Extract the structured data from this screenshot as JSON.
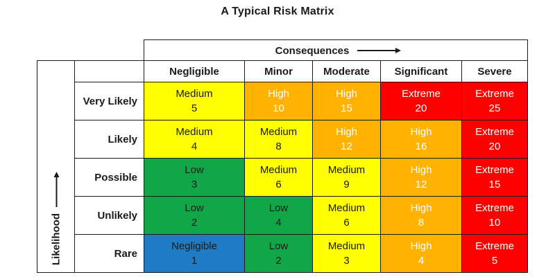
{
  "chart_data": {
    "type": "heatmap",
    "title": "A Typical Risk Matrix",
    "x_axis_label": "Consequences",
    "x_axis_arrow": "right",
    "y_axis_label": "Likelihood",
    "y_axis_arrow": "up",
    "columns": [
      "Negligible",
      "Minor",
      "Moderate",
      "Significant",
      "Severe"
    ],
    "rows": [
      "Very Likely",
      "Likely",
      "Possible",
      "Unlikely",
      "Rare"
    ],
    "cells": [
      [
        {
          "label": "Medium",
          "value": 5
        },
        {
          "label": "High",
          "value": 10
        },
        {
          "label": "High",
          "value": 15
        },
        {
          "label": "Extreme",
          "value": 20
        },
        {
          "label": "Extreme",
          "value": 25
        }
      ],
      [
        {
          "label": "Medium",
          "value": 4
        },
        {
          "label": "Medium",
          "value": 8
        },
        {
          "label": "High",
          "value": 12
        },
        {
          "label": "High",
          "value": 16
        },
        {
          "label": "Extreme",
          "value": 20
        }
      ],
      [
        {
          "label": "Low",
          "value": 3
        },
        {
          "label": "Medium",
          "value": 6
        },
        {
          "label": "Medium",
          "value": 9
        },
        {
          "label": "High",
          "value": 12
        },
        {
          "label": "Extreme",
          "value": 15
        }
      ],
      [
        {
          "label": "Low",
          "value": 2
        },
        {
          "label": "Low",
          "value": 4
        },
        {
          "label": "Medium",
          "value": 6
        },
        {
          "label": "High",
          "value": 8
        },
        {
          "label": "Extreme",
          "value": 10
        }
      ],
      [
        {
          "label": "Negligible",
          "value": 1
        },
        {
          "label": "Low",
          "value": 2
        },
        {
          "label": "Medium",
          "value": 3
        },
        {
          "label": "High",
          "value": 4
        },
        {
          "label": "Extreme",
          "value": 5
        }
      ]
    ],
    "level_colors": {
      "Negligible": "#1F7BC4",
      "Low": "#11A748",
      "Medium": "#FFFF00",
      "High": "#FFB200",
      "Extreme": "#FE0000"
    },
    "level_text_colors": {
      "Negligible": "#1a1a1a",
      "Low": "#1a1a1a",
      "Medium": "#1a1a1a",
      "High": "#ffffff",
      "Extreme": "#ffffff"
    },
    "grid": true,
    "legend_position": "none"
  }
}
